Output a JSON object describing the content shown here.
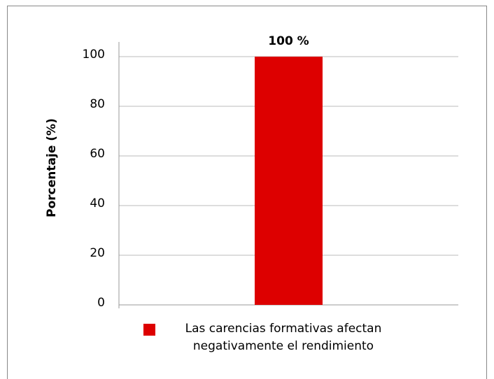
{
  "chart_data": {
    "type": "bar",
    "ylabel": "Porcentaje (%)",
    "categories": [
      null
    ],
    "series": [
      {
        "name": "Las carencias formativas afectan negativamente el rendimiento",
        "color": "#dd0000",
        "values": [
          100
        ],
        "value_labels": [
          "100 %"
        ]
      }
    ],
    "ylim": [
      0,
      100
    ],
    "yticks": [
      0,
      20,
      40,
      60,
      80,
      100
    ],
    "grid": true,
    "legend": "bottom"
  }
}
